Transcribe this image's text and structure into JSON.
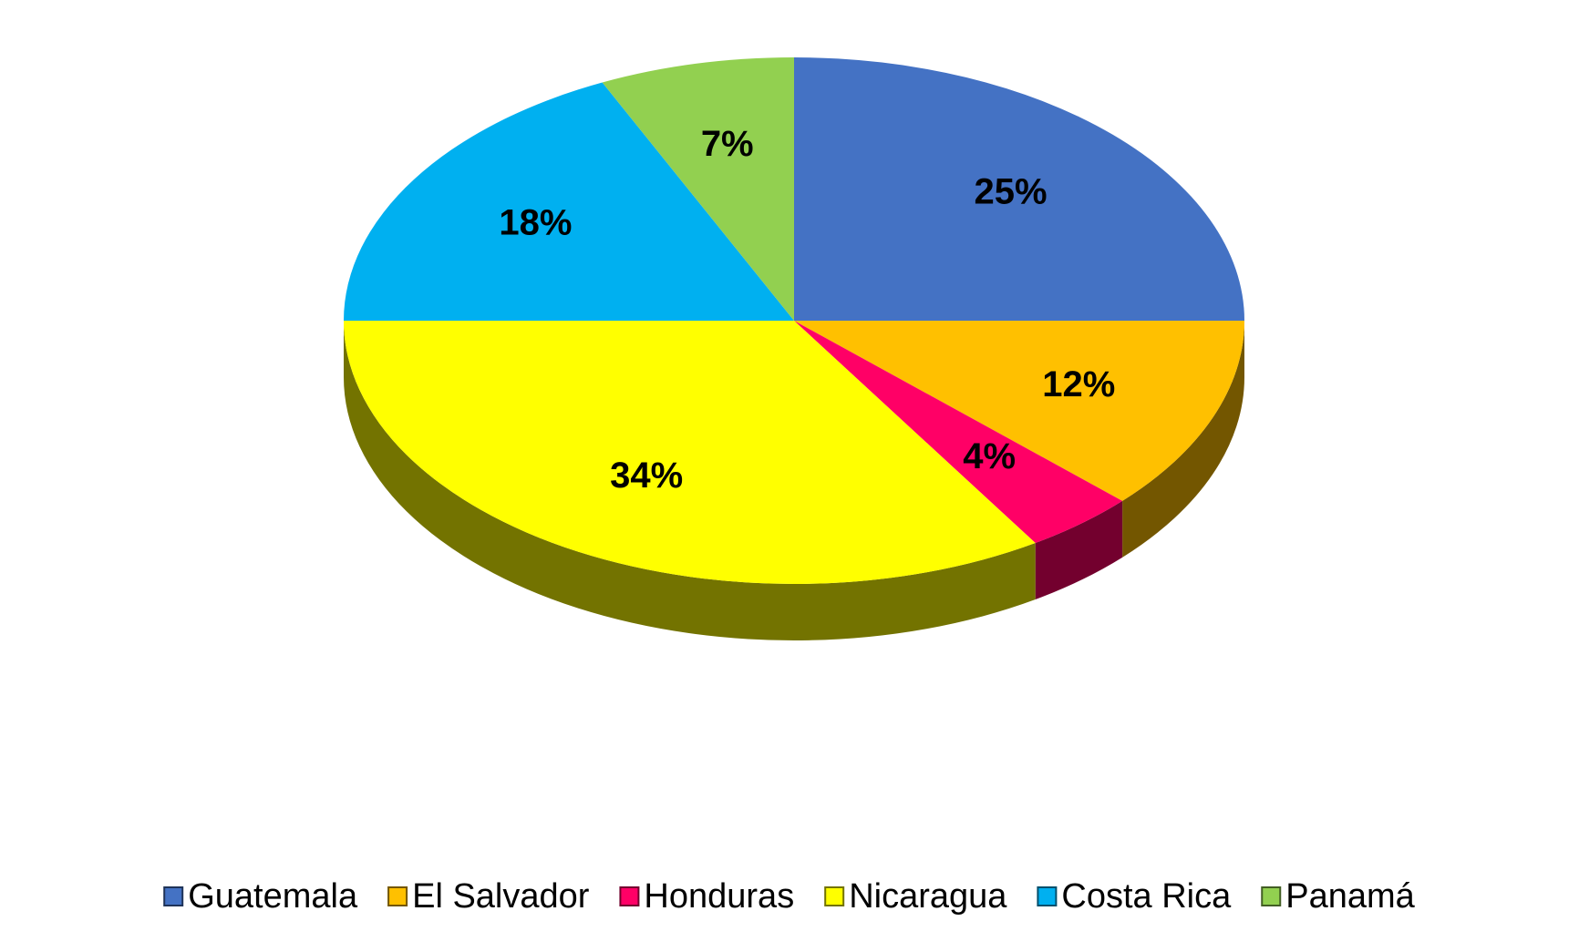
{
  "chart_data": {
    "type": "pie",
    "categories": [
      "Guatemala",
      "El Salvador",
      "Honduras",
      "Nicaragua",
      "Costa Rica",
      "Panamá"
    ],
    "values": [
      25,
      12,
      4,
      34,
      18,
      7
    ],
    "value_labels": [
      "25%",
      "12%",
      "4%",
      "34%",
      "18%",
      "7%"
    ],
    "colors": [
      "#4472c4",
      "#ffc000",
      "#ff0066",
      "#ffff00",
      "#00b0f0",
      "#92d050"
    ],
    "legend": "bottom"
  }
}
